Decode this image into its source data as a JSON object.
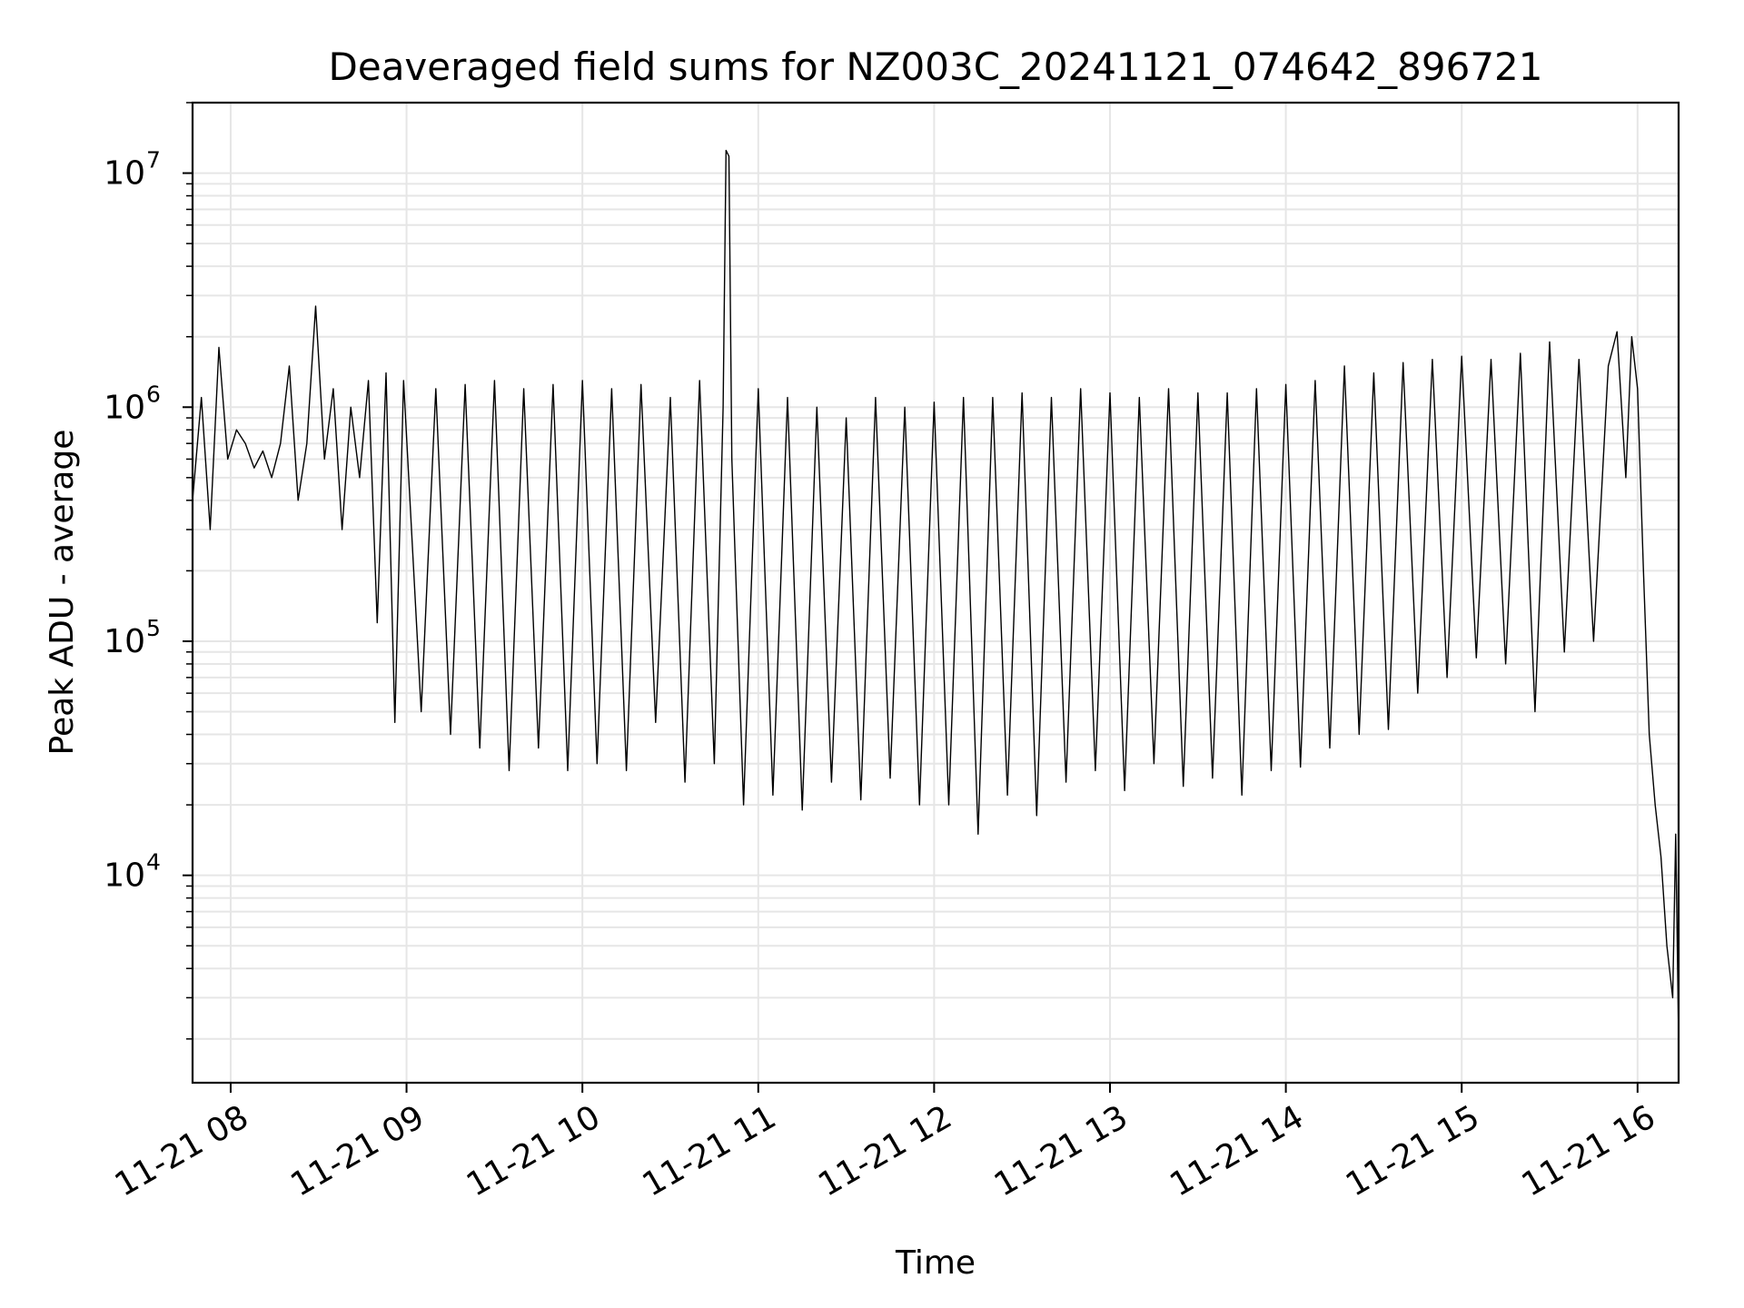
{
  "chart_data": {
    "type": "line",
    "title": "Deaveraged field sums for NZ003C_20241121_074642_896721",
    "xlabel": "Time",
    "ylabel": "Peak ADU - average",
    "yscale": "log",
    "grid": true,
    "line_color": "#000000",
    "grid_color": "#e6e6e6",
    "xlim": [
      "2024-11-21 07:47",
      "2024-11-21 16:14"
    ],
    "ylim": [
      1300,
      20000000
    ],
    "x_ticks": [
      {
        "value": "2024-11-21 08:00",
        "label": "11-21 08"
      },
      {
        "value": "2024-11-21 09:00",
        "label": "11-21 09"
      },
      {
        "value": "2024-11-21 10:00",
        "label": "11-21 10"
      },
      {
        "value": "2024-11-21 11:00",
        "label": "11-21 11"
      },
      {
        "value": "2024-11-21 12:00",
        "label": "11-21 12"
      },
      {
        "value": "2024-11-21 13:00",
        "label": "11-21 13"
      },
      {
        "value": "2024-11-21 14:00",
        "label": "11-21 14"
      },
      {
        "value": "2024-11-21 15:00",
        "label": "11-21 15"
      },
      {
        "value": "2024-11-21 16:00",
        "label": "11-21 16"
      }
    ],
    "y_ticks": [
      {
        "value": 10000,
        "base": "10",
        "exp": "4"
      },
      {
        "value": 100000,
        "base": "10",
        "exp": "5"
      },
      {
        "value": 1000000,
        "base": "10",
        "exp": "6"
      },
      {
        "value": 10000000,
        "base": "10",
        "exp": "7"
      }
    ],
    "series": [
      {
        "x": [
          "2024-11-21 07:47",
          "2024-11-21 07:50",
          "2024-11-21 07:53",
          "2024-11-21 07:56",
          "2024-11-21 07:59",
          "2024-11-21 08:02",
          "2024-11-21 08:05",
          "2024-11-21 08:08",
          "2024-11-21 08:11",
          "2024-11-21 08:14",
          "2024-11-21 08:17",
          "2024-11-21 08:20",
          "2024-11-21 08:23",
          "2024-11-21 08:26",
          "2024-11-21 08:29",
          "2024-11-21 08:32",
          "2024-11-21 08:35",
          "2024-11-21 08:38",
          "2024-11-21 08:41",
          "2024-11-21 08:44",
          "2024-11-21 08:47",
          "2024-11-21 08:50",
          "2024-11-21 08:53",
          "2024-11-21 08:56",
          "2024-11-21 08:59",
          "2024-11-21 09:05",
          "2024-11-21 09:10",
          "2024-11-21 09:15",
          "2024-11-21 09:20",
          "2024-11-21 09:25",
          "2024-11-21 09:30",
          "2024-11-21 09:35",
          "2024-11-21 09:40",
          "2024-11-21 09:45",
          "2024-11-21 09:50",
          "2024-11-21 09:55",
          "2024-11-21 10:00",
          "2024-11-21 10:05",
          "2024-11-21 10:10",
          "2024-11-21 10:15",
          "2024-11-21 10:20",
          "2024-11-21 10:25",
          "2024-11-21 10:30",
          "2024-11-21 10:35",
          "2024-11-21 10:40",
          "2024-11-21 10:45",
          "2024-11-21 10:48",
          "2024-11-21 10:49",
          "2024-11-21 10:50",
          "2024-11-21 10:51",
          "2024-11-21 10:55",
          "2024-11-21 11:00",
          "2024-11-21 11:05",
          "2024-11-21 11:10",
          "2024-11-21 11:15",
          "2024-11-21 11:20",
          "2024-11-21 11:25",
          "2024-11-21 11:30",
          "2024-11-21 11:35",
          "2024-11-21 11:40",
          "2024-11-21 11:45",
          "2024-11-21 11:50",
          "2024-11-21 11:55",
          "2024-11-21 12:00",
          "2024-11-21 12:05",
          "2024-11-21 12:10",
          "2024-11-21 12:15",
          "2024-11-21 12:20",
          "2024-11-21 12:25",
          "2024-11-21 12:30",
          "2024-11-21 12:35",
          "2024-11-21 12:40",
          "2024-11-21 12:45",
          "2024-11-21 12:50",
          "2024-11-21 12:55",
          "2024-11-21 13:00",
          "2024-11-21 13:05",
          "2024-11-21 13:10",
          "2024-11-21 13:15",
          "2024-11-21 13:20",
          "2024-11-21 13:25",
          "2024-11-21 13:30",
          "2024-11-21 13:35",
          "2024-11-21 13:40",
          "2024-11-21 13:45",
          "2024-11-21 13:50",
          "2024-11-21 13:55",
          "2024-11-21 14:00",
          "2024-11-21 14:05",
          "2024-11-21 14:10",
          "2024-11-21 14:15",
          "2024-11-21 14:20",
          "2024-11-21 14:25",
          "2024-11-21 14:30",
          "2024-11-21 14:35",
          "2024-11-21 14:40",
          "2024-11-21 14:45",
          "2024-11-21 14:50",
          "2024-11-21 14:55",
          "2024-11-21 15:00",
          "2024-11-21 15:05",
          "2024-11-21 15:10",
          "2024-11-21 15:15",
          "2024-11-21 15:20",
          "2024-11-21 15:25",
          "2024-11-21 15:30",
          "2024-11-21 15:35",
          "2024-11-21 15:40",
          "2024-11-21 15:45",
          "2024-11-21 15:50",
          "2024-11-21 15:53",
          "2024-11-21 15:56",
          "2024-11-21 15:58",
          "2024-11-21 16:00",
          "2024-11-21 16:02",
          "2024-11-21 16:04",
          "2024-11-21 16:06",
          "2024-11-21 16:08",
          "2024-11-21 16:10",
          "2024-11-21 16:12",
          "2024-11-21 16:13",
          "2024-11-21 16:14"
        ],
        "y": [
          400000,
          1100000,
          300000,
          1800000,
          600000,
          800000,
          700000,
          550000,
          650000,
          500000,
          700000,
          1500000,
          400000,
          700000,
          2700000,
          600000,
          1200000,
          300000,
          1000000,
          500000,
          1300000,
          120000,
          1400000,
          45000,
          1300000,
          50000,
          1200000,
          40000,
          1250000,
          35000,
          1300000,
          28000,
          1200000,
          35000,
          1250000,
          28000,
          1300000,
          30000,
          1200000,
          28000,
          1250000,
          45000,
          1100000,
          25000,
          1300000,
          30000,
          1000000,
          12500000,
          11800000,
          600000,
          20000,
          1200000,
          22000,
          1100000,
          19000,
          1000000,
          25000,
          900000,
          21000,
          1100000,
          26000,
          1000000,
          20000,
          1050000,
          20000,
          1100000,
          15000,
          1100000,
          22000,
          1150000,
          18000,
          1100000,
          25000,
          1200000,
          28000,
          1150000,
          23000,
          1100000,
          30000,
          1200000,
          24000,
          1150000,
          26000,
          1150000,
          22000,
          1200000,
          28000,
          1250000,
          29000,
          1300000,
          35000,
          1500000,
          40000,
          1400000,
          42000,
          1550000,
          60000,
          1600000,
          70000,
          1650000,
          85000,
          1600000,
          80000,
          1700000,
          50000,
          1900000,
          90000,
          1600000,
          100000,
          1500000,
          2100000,
          500000,
          2000000,
          1200000,
          200000,
          40000,
          20000,
          12000,
          5000,
          3000,
          15000,
          2000
        ]
      }
    ]
  }
}
